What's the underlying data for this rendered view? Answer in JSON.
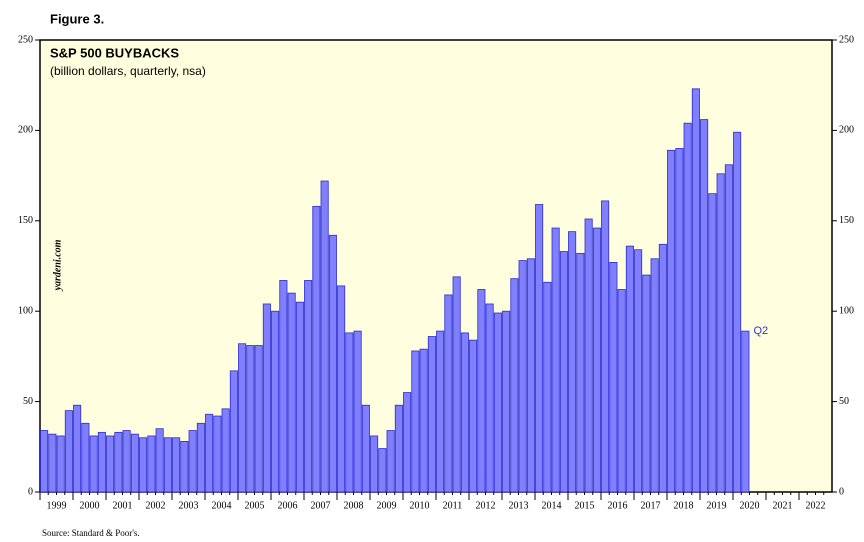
{
  "figure_label": "Figure 3.",
  "source": "Source: Standard & Poor's.",
  "watermark": "yardeni.com",
  "chart_data": {
    "type": "bar",
    "title": "S&P 500 BUYBACKS",
    "subtitle": "(billion dollars, quarterly, nsa)",
    "years": [
      "1999",
      "2000",
      "2001",
      "2002",
      "2003",
      "2004",
      "2005",
      "2006",
      "2007",
      "2008",
      "2009",
      "2010",
      "2011",
      "2012",
      "2013",
      "2014",
      "2015",
      "2016",
      "2017",
      "2018",
      "2019",
      "2020",
      "2021",
      "2022"
    ],
    "values": [
      34,
      32,
      31,
      45,
      48,
      38,
      31,
      33,
      31,
      33,
      34,
      32,
      30,
      31,
      35,
      30,
      30,
      28,
      34,
      38,
      43,
      42,
      46,
      67,
      82,
      81,
      81,
      104,
      100,
      117,
      110,
      105,
      117,
      158,
      172,
      142,
      114,
      88,
      89,
      48,
      31,
      24,
      34,
      48,
      55,
      78,
      79,
      86,
      89,
      109,
      119,
      88,
      84,
      112,
      104,
      99,
      100,
      118,
      128,
      129,
      159,
      116,
      146,
      133,
      144,
      132,
      151,
      146,
      161,
      127,
      112,
      136,
      134,
      120,
      129,
      137,
      189,
      190,
      204,
      223,
      206,
      165,
      176,
      181,
      199,
      89
    ],
    "color": "#8080ff",
    "annotation": "Q2",
    "ylim": [
      0,
      250
    ],
    "yticks": [
      0,
      50,
      100,
      150,
      200,
      250
    ]
  }
}
